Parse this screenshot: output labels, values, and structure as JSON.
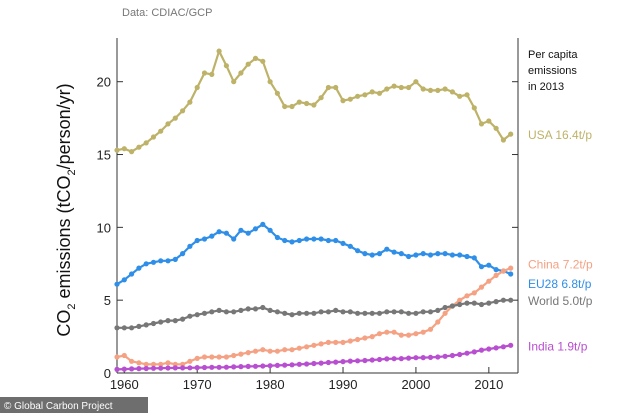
{
  "source_note": "Data: CDIAC/GCP",
  "annotation": [
    "Per capita",
    "emissions",
    "in 2013"
  ],
  "credit": "© Global Carbon Project",
  "colors": {
    "usa": "#BEB268",
    "eu28": "#2F8FE8",
    "china": "#F5A183",
    "world": "#777777",
    "india": "#B84FD0",
    "axis": "#333333"
  },
  "chart_data": {
    "type": "line",
    "ylabel_parts": [
      "CO",
      "2",
      " emissions (tCO",
      "2",
      "/person/yr)"
    ],
    "xlim": [
      1959,
      2014
    ],
    "ylim": [
      0,
      23
    ],
    "xticks": [
      1960,
      1970,
      1980,
      1990,
      2000,
      2010
    ],
    "yticks": [
      0,
      5,
      10,
      15,
      20
    ],
    "grid": false,
    "series": [
      {
        "key": "usa",
        "label": "USA 16.4t/p",
        "x": [
          1959,
          1960,
          1961,
          1962,
          1963,
          1964,
          1965,
          1966,
          1967,
          1968,
          1969,
          1970,
          1971,
          1972,
          1973,
          1974,
          1975,
          1976,
          1977,
          1978,
          1979,
          1980,
          1981,
          1982,
          1983,
          1984,
          1985,
          1986,
          1987,
          1988,
          1989,
          1990,
          1991,
          1992,
          1993,
          1994,
          1995,
          1996,
          1997,
          1998,
          1999,
          2000,
          2001,
          2002,
          2003,
          2004,
          2005,
          2006,
          2007,
          2008,
          2009,
          2010,
          2011,
          2012,
          2013
        ],
        "y": [
          15.3,
          15.4,
          15.2,
          15.5,
          15.8,
          16.2,
          16.6,
          17.1,
          17.5,
          18.0,
          18.6,
          19.6,
          20.6,
          20.5,
          22.1,
          21.1,
          20.0,
          20.6,
          21.2,
          21.6,
          21.4,
          20.0,
          19.2,
          18.3,
          18.3,
          18.6,
          18.5,
          18.4,
          18.9,
          19.6,
          19.6,
          18.7,
          18.8,
          19.0,
          19.1,
          19.3,
          19.2,
          19.5,
          19.7,
          19.6,
          19.6,
          20.0,
          19.5,
          19.4,
          19.4,
          19.5,
          19.3,
          19.0,
          19.1,
          18.2,
          17.1,
          17.3,
          16.8,
          16.0,
          16.4
        ]
      },
      {
        "key": "eu28",
        "label": "EU28 6.8t/p",
        "x": [
          1959,
          1960,
          1961,
          1962,
          1963,
          1964,
          1965,
          1966,
          1967,
          1968,
          1969,
          1970,
          1971,
          1972,
          1973,
          1974,
          1975,
          1976,
          1977,
          1978,
          1979,
          1980,
          1981,
          1982,
          1983,
          1984,
          1985,
          1986,
          1987,
          1988,
          1989,
          1990,
          1991,
          1992,
          1993,
          1994,
          1995,
          1996,
          1997,
          1998,
          1999,
          2000,
          2001,
          2002,
          2003,
          2004,
          2005,
          2006,
          2007,
          2008,
          2009,
          2010,
          2011,
          2012,
          2013
        ],
        "y": [
          6.1,
          6.4,
          6.8,
          7.2,
          7.5,
          7.6,
          7.7,
          7.7,
          7.8,
          8.2,
          8.7,
          9.1,
          9.2,
          9.4,
          9.7,
          9.6,
          9.2,
          9.8,
          9.6,
          9.9,
          10.2,
          9.8,
          9.3,
          9.1,
          9.0,
          9.1,
          9.2,
          9.2,
          9.2,
          9.1,
          9.1,
          8.9,
          8.7,
          8.4,
          8.2,
          8.1,
          8.2,
          8.5,
          8.3,
          8.2,
          8.0,
          8.1,
          8.2,
          8.1,
          8.2,
          8.2,
          8.1,
          8.1,
          8.0,
          7.9,
          7.3,
          7.4,
          7.1,
          7.0,
          6.8
        ]
      },
      {
        "key": "china",
        "label": "China 7.2t/p",
        "x": [
          1959,
          1960,
          1961,
          1962,
          1963,
          1964,
          1965,
          1966,
          1967,
          1968,
          1969,
          1970,
          1971,
          1972,
          1973,
          1974,
          1975,
          1976,
          1977,
          1978,
          1979,
          1980,
          1981,
          1982,
          1983,
          1984,
          1985,
          1986,
          1987,
          1988,
          1989,
          1990,
          1991,
          1992,
          1993,
          1994,
          1995,
          1996,
          1997,
          1998,
          1999,
          2000,
          2001,
          2002,
          2003,
          2004,
          2005,
          2006,
          2007,
          2008,
          2009,
          2010,
          2011,
          2012,
          2013
        ],
        "y": [
          1.1,
          1.2,
          0.8,
          0.7,
          0.6,
          0.6,
          0.6,
          0.7,
          0.6,
          0.6,
          0.8,
          1.0,
          1.1,
          1.1,
          1.1,
          1.1,
          1.2,
          1.3,
          1.4,
          1.5,
          1.6,
          1.5,
          1.5,
          1.6,
          1.6,
          1.7,
          1.8,
          1.9,
          2.0,
          2.1,
          2.1,
          2.1,
          2.2,
          2.3,
          2.4,
          2.5,
          2.7,
          2.8,
          2.8,
          2.6,
          2.6,
          2.7,
          2.8,
          3.0,
          3.5,
          4.1,
          4.6,
          5.0,
          5.3,
          5.5,
          5.9,
          6.3,
          6.7,
          7.0,
          7.2
        ]
      },
      {
        "key": "world",
        "label": "World 5.0t/p",
        "x": [
          1959,
          1960,
          1961,
          1962,
          1963,
          1964,
          1965,
          1966,
          1967,
          1968,
          1969,
          1970,
          1971,
          1972,
          1973,
          1974,
          1975,
          1976,
          1977,
          1978,
          1979,
          1980,
          1981,
          1982,
          1983,
          1984,
          1985,
          1986,
          1987,
          1988,
          1989,
          1990,
          1991,
          1992,
          1993,
          1994,
          1995,
          1996,
          1997,
          1998,
          1999,
          2000,
          2001,
          2002,
          2003,
          2004,
          2005,
          2006,
          2007,
          2008,
          2009,
          2010,
          2011,
          2012,
          2013
        ],
        "y": [
          3.1,
          3.1,
          3.1,
          3.2,
          3.3,
          3.4,
          3.5,
          3.6,
          3.6,
          3.7,
          3.9,
          4.0,
          4.1,
          4.2,
          4.3,
          4.2,
          4.2,
          4.3,
          4.4,
          4.4,
          4.5,
          4.3,
          4.2,
          4.1,
          4.0,
          4.1,
          4.1,
          4.1,
          4.2,
          4.2,
          4.3,
          4.2,
          4.2,
          4.1,
          4.1,
          4.1,
          4.1,
          4.2,
          4.2,
          4.2,
          4.1,
          4.1,
          4.2,
          4.2,
          4.3,
          4.5,
          4.6,
          4.7,
          4.8,
          4.8,
          4.7,
          4.8,
          4.9,
          5.0,
          5.0
        ]
      },
      {
        "key": "india",
        "label": "India 1.9t/p",
        "x": [
          1959,
          1960,
          1961,
          1962,
          1963,
          1964,
          1965,
          1966,
          1967,
          1968,
          1969,
          1970,
          1971,
          1972,
          1973,
          1974,
          1975,
          1976,
          1977,
          1978,
          1979,
          1980,
          1981,
          1982,
          1983,
          1984,
          1985,
          1986,
          1987,
          1988,
          1989,
          1990,
          1991,
          1992,
          1993,
          1994,
          1995,
          1996,
          1997,
          1998,
          1999,
          2000,
          2001,
          2002,
          2003,
          2004,
          2005,
          2006,
          2007,
          2008,
          2009,
          2010,
          2011,
          2012,
          2013
        ],
        "y": [
          0.25,
          0.27,
          0.28,
          0.3,
          0.31,
          0.32,
          0.33,
          0.34,
          0.35,
          0.35,
          0.36,
          0.37,
          0.38,
          0.39,
          0.39,
          0.4,
          0.42,
          0.44,
          0.45,
          0.46,
          0.48,
          0.5,
          0.52,
          0.54,
          0.56,
          0.6,
          0.62,
          0.65,
          0.68,
          0.72,
          0.75,
          0.78,
          0.82,
          0.84,
          0.86,
          0.89,
          0.93,
          0.97,
          0.98,
          0.99,
          1.02,
          1.05,
          1.06,
          1.07,
          1.1,
          1.15,
          1.2,
          1.27,
          1.36,
          1.45,
          1.57,
          1.65,
          1.72,
          1.8,
          1.9
        ]
      }
    ]
  }
}
